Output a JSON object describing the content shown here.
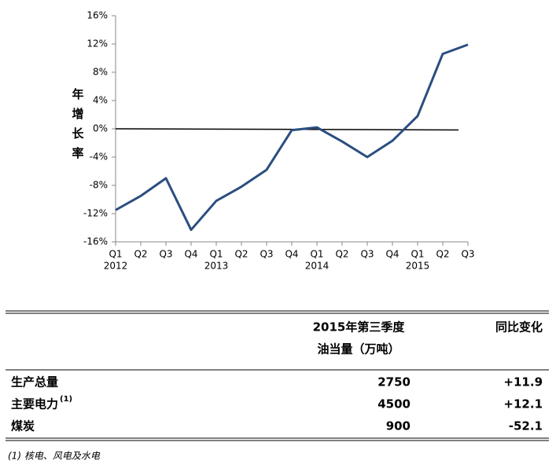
{
  "chart_data": {
    "type": "line",
    "y_label": "年增长率",
    "categories": [
      "Q1",
      "Q2",
      "Q3",
      "Q4",
      "Q1",
      "Q2",
      "Q3",
      "Q4",
      "Q1",
      "Q2",
      "Q3",
      "Q4",
      "Q1",
      "Q2",
      "Q3"
    ],
    "years": [
      "2012",
      null,
      null,
      null,
      "2013",
      null,
      null,
      null,
      "2014",
      null,
      null,
      null,
      "2015",
      null,
      null
    ],
    "values": [
      -11.5,
      -9.5,
      -7.0,
      -14.3,
      -10.2,
      -8.2,
      -5.8,
      -0.2,
      0.2,
      -1.8,
      -4.0,
      -1.7,
      1.8,
      10.6,
      11.9
    ],
    "color": "#2b4e80",
    "ylim": [
      -16,
      16
    ],
    "yticks": [
      {
        "value": -16,
        "label": "-16%"
      },
      {
        "value": -12,
        "label": "-12%"
      },
      {
        "value": -8,
        "label": "-8%"
      },
      {
        "value": -4,
        "label": "-4%"
      },
      {
        "value": 0,
        "label": "0%"
      },
      {
        "value": 4,
        "label": "4%"
      },
      {
        "value": 8,
        "label": "8%"
      },
      {
        "value": 12,
        "label": "12%"
      },
      {
        "value": 16,
        "label": "16%"
      }
    ],
    "reference_line": 0
  },
  "table": {
    "header": [
      [
        "2015年第三季度",
        "油当量（万吨）"
      ],
      [
        "同比变化"
      ]
    ],
    "rows": [
      {
        "label": "生产总量",
        "value": 2750,
        "change": "+11.9"
      },
      {
        "label": "主要电力",
        "note": "(1)",
        "value": 4500,
        "change": "+12.1"
      },
      {
        "label": "煤炭",
        "value": 900,
        "change": "-52.1"
      }
    ]
  },
  "footnote": "(1) 核电、风电及水电"
}
